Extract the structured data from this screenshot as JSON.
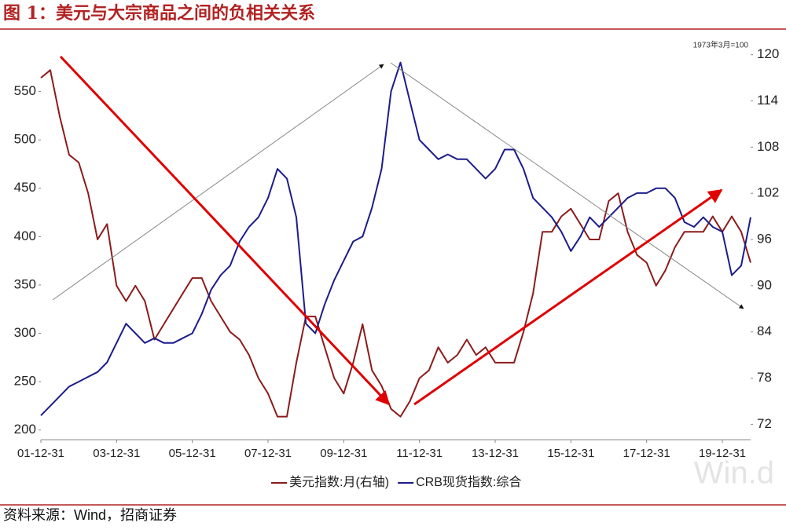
{
  "chart_data": {
    "type": "line",
    "title": "图 1：美元与大宗商品之间的负相关关系",
    "annotation": "1973年3月=100",
    "source": "资料来源：Wind，招商证券",
    "watermark": "Win.d",
    "x": [
      "01-12-31",
      "02-03-31",
      "02-06-30",
      "02-09-30",
      "02-12-31",
      "03-03-31",
      "03-06-30",
      "03-09-30",
      "03-12-31",
      "04-03-31",
      "04-06-30",
      "04-09-30",
      "04-12-31",
      "05-03-31",
      "05-06-30",
      "05-09-30",
      "05-12-31",
      "06-03-31",
      "06-06-30",
      "06-09-30",
      "06-12-31",
      "07-03-31",
      "07-06-30",
      "07-09-30",
      "07-12-31",
      "08-03-31",
      "08-06-30",
      "08-09-30",
      "08-12-31",
      "09-03-31",
      "09-06-30",
      "09-09-30",
      "09-12-31",
      "10-03-31",
      "10-06-30",
      "10-09-30",
      "10-12-31",
      "11-03-31",
      "11-06-30",
      "11-09-30",
      "11-12-31",
      "12-03-31",
      "12-06-30",
      "12-09-30",
      "12-12-31",
      "13-03-31",
      "13-06-30",
      "13-09-30",
      "13-12-31",
      "14-03-31",
      "14-06-30",
      "14-09-30",
      "14-12-31",
      "15-03-31",
      "15-06-30",
      "15-09-30",
      "15-12-31",
      "16-03-31",
      "16-06-30",
      "16-09-30",
      "16-12-31",
      "17-03-31",
      "17-06-30",
      "17-09-30",
      "17-12-31",
      "18-03-31",
      "18-06-30",
      "18-09-30",
      "18-12-31",
      "19-03-31",
      "19-06-30",
      "19-09-30",
      "19-12-31",
      "20-03-31",
      "20-06-30",
      "20-09-30"
    ],
    "xlim": [
      "01-12-31",
      "20-09-30"
    ],
    "xticks": [
      "01-12-31",
      "03-12-31",
      "05-12-31",
      "07-12-31",
      "09-12-31",
      "11-12-31",
      "13-12-31",
      "15-12-31",
      "17-12-31",
      "19-12-31"
    ],
    "ylim": [
      190,
      600
    ],
    "yticks": [
      200,
      250,
      300,
      350,
      400,
      450,
      500,
      550
    ],
    "y2lim": [
      70,
      121.5
    ],
    "y2ticks": [
      72,
      78,
      84,
      90,
      96,
      102,
      108,
      114,
      120
    ],
    "series": [
      {
        "name": "美元指数:月(右轴)",
        "color": "#8b1c1c",
        "axis": "y2",
        "values": [
          117,
          118,
          112,
          107,
          106,
          102,
          96,
          98,
          90,
          88,
          90,
          88,
          83,
          85,
          87,
          89,
          91,
          91,
          88,
          86,
          84,
          83,
          81,
          78,
          76,
          73,
          73,
          80,
          86,
          86,
          82,
          78,
          76,
          80,
          85,
          79,
          77,
          74,
          73,
          75,
          78,
          79,
          82,
          80,
          81,
          83,
          81,
          82,
          80,
          80,
          80,
          84,
          89,
          97,
          97,
          99,
          100,
          98,
          96,
          96,
          101,
          102,
          97,
          94,
          93,
          90,
          92,
          95,
          97,
          97,
          97,
          99,
          97,
          99,
          97,
          93
        ]
      },
      {
        "name": "CRB现货指数:综合",
        "color": "#1c1c8c",
        "values": [
          215,
          225,
          235,
          245,
          250,
          255,
          260,
          270,
          290,
          310,
          300,
          290,
          295,
          290,
          290,
          295,
          300,
          320,
          345,
          360,
          370,
          395,
          410,
          420,
          440,
          470,
          460,
          420,
          310,
          300,
          330,
          355,
          375,
          395,
          400,
          430,
          470,
          550,
          580,
          540,
          500,
          490,
          480,
          485,
          480,
          480,
          470,
          460,
          470,
          490,
          490,
          470,
          440,
          430,
          420,
          405,
          385,
          400,
          420,
          410,
          420,
          430,
          440,
          445,
          445,
          450,
          450,
          440,
          415,
          410,
          420,
          410,
          405,
          360,
          370,
          420
        ]
      }
    ]
  }
}
